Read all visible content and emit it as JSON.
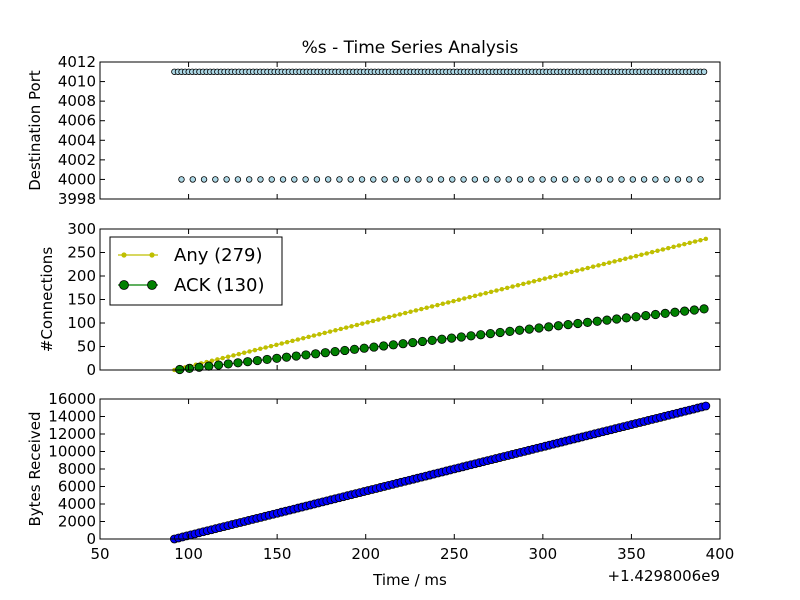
{
  "figure": {
    "title": "%s - Time Series Analysis",
    "xlabel": "Time / ms",
    "offset_label": "+1.4298006e9"
  },
  "chart_data": [
    {
      "type": "scatter",
      "ylabel": "Destination Port",
      "xlim": [
        50,
        400
      ],
      "ylim": [
        3998,
        4012
      ],
      "xticks": [
        50,
        100,
        150,
        200,
        250,
        300,
        350,
        400
      ],
      "yticks": [
        3998,
        4000,
        4002,
        4004,
        4006,
        4008,
        4010,
        4012
      ],
      "grid": false,
      "series": [
        {
          "port": 4011,
          "x_start": 92,
          "x_end": 391,
          "count": 149,
          "color": "#add8e6"
        },
        {
          "port": 4000,
          "x_start": 96,
          "x_end": 389,
          "count": 47,
          "color": "#add8e6"
        }
      ]
    },
    {
      "type": "line",
      "ylabel": "#Connections",
      "xlim": [
        50,
        400
      ],
      "ylim": [
        0,
        300
      ],
      "xticks": [
        50,
        100,
        150,
        200,
        250,
        300,
        350,
        400
      ],
      "yticks": [
        0,
        50,
        100,
        150,
        200,
        250,
        300
      ],
      "grid": false,
      "legend_position": "top-left",
      "series": [
        {
          "name": "Any (279)",
          "color": "#bfbf00",
          "marker": "small-dot",
          "x_start": 92,
          "x_end": 392,
          "y_start": 0,
          "y_end": 279,
          "points": 100
        },
        {
          "name": "ACK (130)",
          "color": "#008000",
          "marker": "circle",
          "x_start": 95,
          "x_end": 391,
          "y_start": 1,
          "y_end": 130,
          "points": 55
        }
      ]
    },
    {
      "type": "scatter",
      "ylabel": "Bytes Received",
      "xlim": [
        50,
        400
      ],
      "ylim": [
        0,
        16000
      ],
      "xticks": [
        50,
        100,
        150,
        200,
        250,
        300,
        350,
        400
      ],
      "yticks": [
        0,
        2000,
        4000,
        6000,
        8000,
        10000,
        12000,
        14000,
        16000
      ],
      "grid": false,
      "series": [
        {
          "color": "#0000ff",
          "x_start": 92,
          "x_end": 392,
          "y_start": 0,
          "y_end": 15200,
          "points": 130
        }
      ]
    }
  ]
}
